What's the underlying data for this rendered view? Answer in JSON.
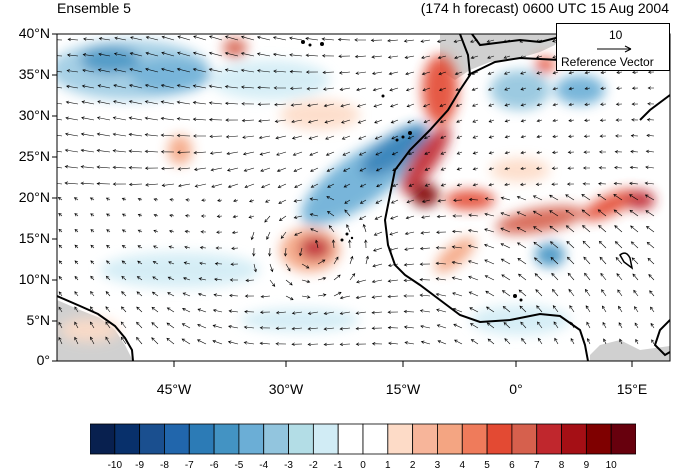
{
  "title_left": "Ensemble 5",
  "title_right": "(174 h forecast) 0600 UTC 15 Aug 2004",
  "lat_labels": [
    "40°N",
    "35°N",
    "30°N",
    "25°N",
    "20°N",
    "15°N",
    "10°N",
    "5°N",
    "0°"
  ],
  "lon_labels": [
    "45°W",
    "30°W",
    "15°W",
    "0°",
    "15°E"
  ],
  "reference_vector": {
    "magnitude": "10",
    "label": "Reference Vector"
  },
  "colorbar": {
    "labels": [
      "-10",
      "-9",
      "-8",
      "-7",
      "-6",
      "-5",
      "-4",
      "-3",
      "-2",
      "-1",
      "0",
      "1",
      "2",
      "3",
      "4",
      "5",
      "6",
      "7",
      "8",
      "9",
      "10"
    ],
    "colors": [
      "#08204f",
      "#08306b",
      "#1a4f8f",
      "#2166ac",
      "#2c7bb6",
      "#4393c3",
      "#6baed6",
      "#92c5de",
      "#b3dde6",
      "#d1ecf5",
      "#ffffff",
      "#ffffff",
      "#fddbc7",
      "#f7b59a",
      "#f4a582",
      "#ef7b5b",
      "#e34a33",
      "#d6604d",
      "#c0272d",
      "#a50f15",
      "#7f0000",
      "#67000d"
    ]
  },
  "map": {
    "land_color": "#cfcfcf",
    "ocean_color": "#ffffff"
  }
}
